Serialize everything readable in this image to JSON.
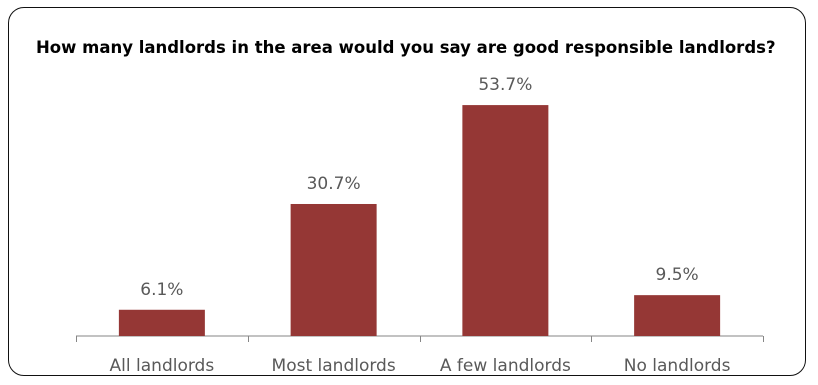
{
  "chart_data": {
    "type": "bar",
    "title": "How many landlords in the area would you say are good responsible landlords?",
    "categories": [
      "All landlords",
      "Most landlords",
      "A few landlords",
      "No landlords"
    ],
    "values": [
      6.1,
      30.7,
      53.7,
      9.5
    ],
    "value_labels": [
      "6.1%",
      "30.7%",
      "53.7%",
      "9.5%"
    ],
    "unit": "%",
    "ylim": [
      0,
      60
    ],
    "grid": false,
    "legend": "none",
    "colors": {
      "bar": "#953735",
      "axis": "#868686",
      "label": "#595959"
    }
  }
}
